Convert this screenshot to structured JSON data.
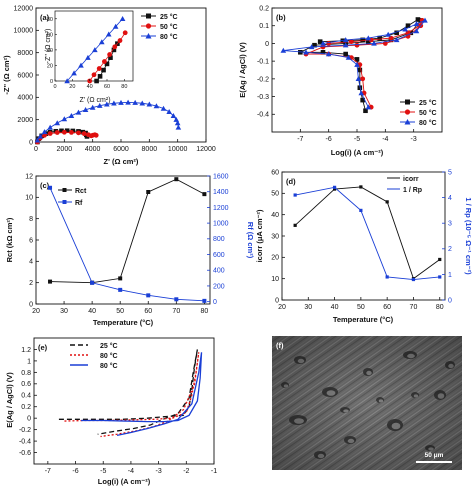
{
  "colors": {
    "black": "#111111",
    "red": "#e01010",
    "blue": "#1a3fd6"
  },
  "panels": {
    "a": {
      "label": "(a)",
      "xlabel": "Z' (Ω cm²)",
      "ylabel": "-Z'' (Ω cm²)",
      "inset_xlabel": "Z' (Ω cm²)",
      "inset_ylabel": "-Z'' (Ω cm²)",
      "legend": [
        "25 °C",
        "50 °C",
        "80 °C"
      ]
    },
    "b": {
      "label": "(b)",
      "xlabel": "Log(i) (A cm⁻²)",
      "ylabel": "E(Ag / AgCl) (V)",
      "legend": [
        "25 °C",
        "50 °C",
        "80 °C"
      ]
    },
    "c": {
      "label": "(c)",
      "xlabel": "Temperature (°C)",
      "ylabel": "Rct (kΩ cm²)",
      "y2label": "Rf (Ω cm²)",
      "legend": [
        "Rct",
        "Rf"
      ]
    },
    "d": {
      "label": "(d)",
      "xlabel": "Temperature (°C)",
      "ylabel": "icorr (μA cm⁻²)",
      "y2label": "1 / Rp (10⁻⁵ Ω⁻¹ cm⁻²)",
      "legend": [
        "icorr",
        "1 / Rp"
      ]
    },
    "e": {
      "label": "(e)",
      "xlabel": "Log(i) (A cm⁻²)",
      "ylabel": "E(Ag / AgCl) (V)",
      "legend": [
        "25 °C",
        "80 °C",
        "80 °C"
      ]
    },
    "f": {
      "label": "(f)",
      "scale_bar": "50 μm"
    }
  },
  "chart_data": [
    {
      "id": "a",
      "type": "scatter",
      "xlim": [
        0,
        12000
      ],
      "ylim": [
        0,
        12000
      ],
      "xticks": [
        0,
        2000,
        4000,
        6000,
        8000,
        10000,
        12000
      ],
      "yticks": [
        0,
        2000,
        4000,
        6000,
        8000,
        10000,
        12000
      ],
      "series": [
        {
          "name": "25 °C",
          "color": "#111111",
          "points": [
            [
              100,
              0
            ],
            [
              200,
              300
            ],
            [
              400,
              550
            ],
            [
              700,
              750
            ],
            [
              1000,
              880
            ],
            [
              1400,
              960
            ],
            [
              1800,
              1000
            ],
            [
              2200,
              1010
            ],
            [
              2600,
              990
            ],
            [
              3000,
              950
            ],
            [
              3300,
              880
            ],
            [
              3500,
              800
            ],
            [
              3550,
              650
            ],
            [
              3600,
              500
            ]
          ]
        },
        {
          "name": "50 °C",
          "color": "#e01010",
          "points": [
            [
              100,
              0
            ],
            [
              300,
              350
            ],
            [
              600,
              600
            ],
            [
              1000,
              760
            ],
            [
              1500,
              850
            ],
            [
              2000,
              870
            ],
            [
              2500,
              860
            ],
            [
              3000,
              820
            ],
            [
              3400,
              750
            ],
            [
              3700,
              650
            ],
            [
              3900,
              550
            ],
            [
              4000,
              600
            ],
            [
              4150,
              650
            ],
            [
              4250,
              600
            ]
          ]
        },
        {
          "name": "80 °C",
          "color": "#1a3fd6",
          "points": [
            [
              100,
              150
            ],
            [
              300,
              500
            ],
            [
              600,
              900
            ],
            [
              1000,
              1300
            ],
            [
              1500,
              1700
            ],
            [
              2000,
              2050
            ],
            [
              2500,
              2350
            ],
            [
              3000,
              2650
            ],
            [
              3500,
              2880
            ],
            [
              4000,
              3080
            ],
            [
              4500,
              3250
            ],
            [
              5000,
              3380
            ],
            [
              5500,
              3470
            ],
            [
              6000,
              3520
            ],
            [
              6500,
              3540
            ],
            [
              7000,
              3520
            ],
            [
              7500,
              3470
            ],
            [
              8000,
              3380
            ],
            [
              8500,
              3220
            ],
            [
              9000,
              3000
            ],
            [
              9400,
              2700
            ],
            [
              9700,
              2350
            ],
            [
              9900,
              2000
            ],
            [
              10000,
              1700
            ],
            [
              10050,
              1300
            ]
          ]
        }
      ]
    },
    {
      "id": "b",
      "type": "line",
      "xlim": [
        -8,
        -2
      ],
      "ylim": [
        -0.5,
        0.2
      ],
      "xticks": [
        -7,
        -6,
        -5,
        -4,
        -3
      ],
      "yticks": [
        -0.4,
        -0.3,
        -0.2,
        -0.1,
        0.0,
        0.1,
        0.2
      ],
      "series": [
        {
          "name": "25 °C",
          "color": "#111111",
          "points": [
            [
              -6.3,
              0.01
            ],
            [
              -5.5,
              0.015
            ],
            [
              -4.8,
              0.02
            ],
            [
              -4.2,
              0.03
            ],
            [
              -3.6,
              0.06
            ],
            [
              -3.2,
              0.1
            ],
            [
              -2.85,
              0.135
            ],
            [
              -2.75,
              0.13
            ],
            [
              -3.1,
              0.06
            ],
            [
              -3.8,
              0.02
            ],
            [
              -4.6,
              0.01
            ],
            [
              -5.4,
              0.0
            ],
            [
              -6.5,
              -0.01
            ],
            [
              -7.0,
              -0.05
            ],
            [
              -6.2,
              -0.05
            ],
            [
              -5.4,
              -0.06
            ],
            [
              -5.0,
              -0.09
            ],
            [
              -4.9,
              -0.15
            ],
            [
              -4.9,
              -0.25
            ],
            [
              -4.8,
              -0.32
            ],
            [
              -4.7,
              -0.38
            ]
          ]
        },
        {
          "name": "50 °C",
          "color": "#e01010",
          "points": [
            [
              -6.0,
              0.0
            ],
            [
              -5.2,
              0.01
            ],
            [
              -4.5,
              0.02
            ],
            [
              -3.8,
              0.03
            ],
            [
              -3.2,
              0.06
            ],
            [
              -2.8,
              0.1
            ],
            [
              -2.7,
              0.13
            ],
            [
              -2.75,
              0.1
            ],
            [
              -3.2,
              0.04
            ],
            [
              -4.0,
              0.0
            ],
            [
              -5.0,
              -0.01
            ],
            [
              -6.2,
              -0.02
            ],
            [
              -6.8,
              -0.06
            ],
            [
              -6.0,
              -0.06
            ],
            [
              -5.2,
              -0.08
            ],
            [
              -4.9,
              -0.12
            ],
            [
              -4.8,
              -0.2
            ],
            [
              -4.75,
              -0.28
            ],
            [
              -4.5,
              -0.36
            ]
          ]
        },
        {
          "name": "80 °C",
          "color": "#1a3fd6",
          "points": [
            [
              -6.2,
              0.0
            ],
            [
              -5.4,
              0.02
            ],
            [
              -4.6,
              0.03
            ],
            [
              -3.9,
              0.05
            ],
            [
              -3.3,
              0.08
            ],
            [
              -2.9,
              0.11
            ],
            [
              -2.6,
              0.13
            ],
            [
              -2.9,
              0.07
            ],
            [
              -3.6,
              0.02
            ],
            [
              -4.4,
              0.0
            ],
            [
              -5.4,
              -0.01
            ],
            [
              -6.6,
              -0.02
            ],
            [
              -7.6,
              -0.04
            ],
            [
              -6.8,
              -0.05
            ],
            [
              -6.0,
              -0.06
            ],
            [
              -5.3,
              -0.08
            ],
            [
              -5.0,
              -0.12
            ],
            [
              -4.95,
              -0.2
            ],
            [
              -4.85,
              -0.28
            ],
            [
              -4.6,
              -0.36
            ]
          ]
        }
      ]
    },
    {
      "id": "c",
      "type": "line",
      "xlim": [
        20,
        82
      ],
      "ylim": [
        0,
        12
      ],
      "y2lim": [
        -30,
        1600
      ],
      "xticks": [
        20,
        30,
        40,
        50,
        60,
        70,
        80
      ],
      "yticks": [
        0,
        2,
        4,
        6,
        8,
        10,
        12
      ],
      "y2ticks": [
        0,
        200,
        400,
        600,
        800,
        1000,
        1200,
        1400,
        1600
      ],
      "series": [
        {
          "name": "Rct",
          "color": "#111111",
          "axis": "left",
          "x": [
            25,
            40,
            50,
            60,
            70,
            80
          ],
          "y": [
            2.1,
            2.0,
            2.4,
            10.5,
            11.7,
            10.3
          ]
        },
        {
          "name": "Rf",
          "color": "#1a3fd6",
          "axis": "right",
          "x": [
            25,
            40,
            50,
            60,
            70,
            80
          ],
          "y": [
            1450,
            240,
            150,
            80,
            30,
            10
          ]
        }
      ]
    },
    {
      "id": "d",
      "type": "line",
      "xlim": [
        20,
        82
      ],
      "ylim": [
        0,
        60
      ],
      "y2lim": [
        0,
        5
      ],
      "xticks": [
        20,
        30,
        40,
        50,
        60,
        70,
        80
      ],
      "yticks": [
        0,
        10,
        20,
        30,
        40,
        50,
        60
      ],
      "y2ticks": [
        0,
        1,
        2,
        3,
        4,
        5
      ],
      "series": [
        {
          "name": "icorr",
          "color": "#111111",
          "axis": "left",
          "x": [
            25,
            40,
            50,
            60,
            70,
            80
          ],
          "y": [
            35,
            52,
            53,
            46,
            10,
            19
          ]
        },
        {
          "name": "1 / Rp",
          "color": "#1a3fd6",
          "axis": "right",
          "x": [
            25,
            40,
            50,
            60,
            70,
            80
          ],
          "y": [
            4.1,
            4.4,
            3.5,
            0.9,
            0.8,
            0.9
          ]
        }
      ]
    },
    {
      "id": "e",
      "type": "line",
      "xlim": [
        -7.5,
        -1
      ],
      "ylim": [
        -0.8,
        1.4
      ],
      "xticks": [
        -7,
        -6,
        -5,
        -4,
        -3,
        -2,
        -1
      ],
      "yticks": [
        -0.6,
        -0.4,
        -0.2,
        0.0,
        0.2,
        0.4,
        0.6,
        0.8,
        1.0,
        1.2
      ],
      "series": [
        {
          "name": "25 °C",
          "color": "#111111",
          "dash": "5,3",
          "points": [
            [
              -6.6,
              -0.02
            ],
            [
              -6.0,
              -0.02
            ],
            [
              -5.2,
              -0.02
            ],
            [
              -4.3,
              -0.02
            ],
            [
              -3.4,
              0.0
            ],
            [
              -2.7,
              0.03
            ],
            [
              -2.1,
              0.05
            ],
            [
              -1.9,
              0.2
            ],
            [
              -1.8,
              0.5
            ],
            [
              -1.7,
              0.9
            ],
            [
              -1.6,
              1.2
            ],
            [
              -1.75,
              0.8
            ],
            [
              -1.9,
              0.35
            ],
            [
              -2.3,
              0.08
            ],
            [
              -2.9,
              -0.03
            ],
            [
              -3.3,
              -0.12
            ],
            [
              -3.9,
              -0.18
            ],
            [
              -4.6,
              -0.23
            ],
            [
              -5.2,
              -0.28
            ]
          ]
        },
        {
          "name": "80 °C",
          "color": "#e01010",
          "dash": "2,2",
          "points": [
            [
              -6.4,
              -0.05
            ],
            [
              -5.6,
              -0.04
            ],
            [
              -4.8,
              -0.04
            ],
            [
              -4.0,
              -0.03
            ],
            [
              -3.2,
              -0.02
            ],
            [
              -2.5,
              0.0
            ],
            [
              -2.0,
              0.1
            ],
            [
              -1.8,
              0.4
            ],
            [
              -1.65,
              0.8
            ],
            [
              -1.55,
              1.15
            ],
            [
              -1.7,
              0.6
            ],
            [
              -2.1,
              0.15
            ],
            [
              -2.7,
              -0.06
            ],
            [
              -3.2,
              -0.15
            ],
            [
              -3.8,
              -0.22
            ],
            [
              -4.5,
              -0.28
            ],
            [
              -5.1,
              -0.32
            ]
          ]
        },
        {
          "name": "80 °C",
          "color": "#1a3fd6",
          "dash": "",
          "points": [
            [
              -5.8,
              -0.04
            ],
            [
              -5.0,
              -0.04
            ],
            [
              -4.2,
              -0.05
            ],
            [
              -3.4,
              -0.06
            ],
            [
              -2.8,
              -0.06
            ],
            [
              -2.3,
              -0.04
            ],
            [
              -1.9,
              0.05
            ],
            [
              -1.6,
              0.3
            ],
            [
              -1.5,
              0.7
            ],
            [
              -1.45,
              1.15
            ],
            [
              -1.55,
              0.8
            ],
            [
              -1.8,
              0.25
            ],
            [
              -2.3,
              -0.02
            ],
            [
              -2.8,
              -0.1
            ],
            [
              -3.4,
              -0.18
            ],
            [
              -4.0,
              -0.25
            ],
            [
              -4.5,
              -0.3
            ]
          ]
        }
      ]
    }
  ]
}
